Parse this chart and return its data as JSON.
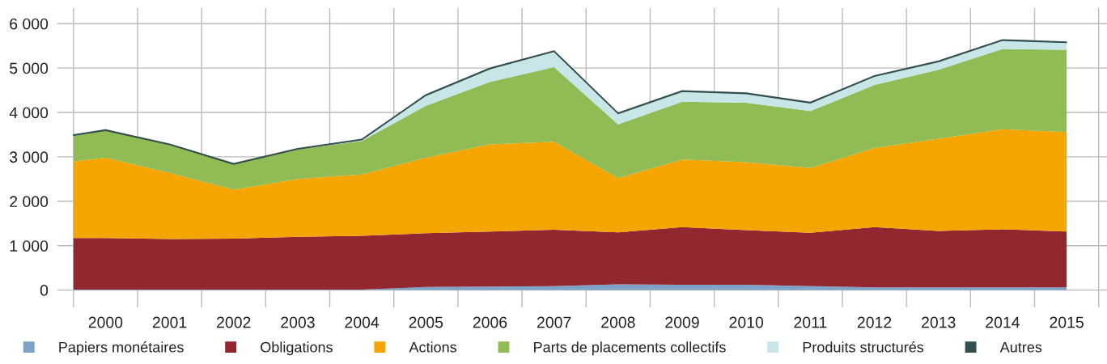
{
  "chart_data": {
    "type": "area",
    "stacked": true,
    "x": [
      1999.5,
      2000,
      2001,
      2002,
      2003,
      2004,
      2005,
      2006,
      2007,
      2008,
      2009,
      2010,
      2011,
      2012,
      2013,
      2014,
      2015
    ],
    "series": [
      {
        "name": "Papiers monétaires",
        "color": "#7da3c8",
        "values": [
          10,
          10,
          10,
          10,
          10,
          10,
          70,
          80,
          90,
          130,
          120,
          120,
          90,
          60,
          60,
          60,
          60
        ]
      },
      {
        "name": "Obligations",
        "color": "#922730",
        "values": [
          1160,
          1160,
          1140,
          1150,
          1190,
          1210,
          1210,
          1240,
          1270,
          1170,
          1300,
          1230,
          1200,
          1360,
          1270,
          1310,
          1260
        ]
      },
      {
        "name": "Actions",
        "color": "#f5a500",
        "values": [
          1730,
          1810,
          1490,
          1100,
          1300,
          1380,
          1700,
          1960,
          1980,
          1220,
          1520,
          1530,
          1460,
          1780,
          2080,
          2250,
          2240
        ]
      },
      {
        "name": "Parts de placements collectifs",
        "color": "#91bb55",
        "values": [
          580,
          610,
          630,
          570,
          670,
          760,
          1170,
          1410,
          1680,
          1210,
          1300,
          1340,
          1280,
          1420,
          1550,
          1810,
          1850
        ]
      },
      {
        "name": "Produits structurés",
        "color": "#c8e6e8",
        "values": [
          0,
          0,
          0,
          0,
          0,
          20,
          230,
          290,
          350,
          240,
          230,
          200,
          180,
          190,
          180,
          190,
          160
        ]
      },
      {
        "name": "Autres",
        "color": "#34504e",
        "values": [
          20,
          20,
          20,
          20,
          20,
          20,
          20,
          20,
          20,
          20,
          20,
          20,
          20,
          20,
          20,
          20,
          20
        ]
      }
    ],
    "xlim": [
      1999.25,
      2015.63
    ],
    "xticks": [
      {
        "value": 1999.5,
        "label": null
      },
      {
        "value": 2000,
        "label": "2000"
      },
      {
        "value": 2000.5,
        "label": null
      },
      {
        "value": 2001,
        "label": "2001"
      },
      {
        "value": 2001.5,
        "label": null
      },
      {
        "value": 2002,
        "label": "2002"
      },
      {
        "value": 2002.5,
        "label": null
      },
      {
        "value": 2003,
        "label": "2003"
      },
      {
        "value": 2003.5,
        "label": null
      },
      {
        "value": 2004,
        "label": "2004"
      },
      {
        "value": 2004.5,
        "label": null
      },
      {
        "value": 2005,
        "label": "2005"
      },
      {
        "value": 2005.5,
        "label": null
      },
      {
        "value": 2006,
        "label": "2006"
      },
      {
        "value": 2006.5,
        "label": null
      },
      {
        "value": 2007,
        "label": "2007"
      },
      {
        "value": 2007.5,
        "label": null
      },
      {
        "value": 2008,
        "label": "2008"
      },
      {
        "value": 2008.5,
        "label": null
      },
      {
        "value": 2009,
        "label": "2009"
      },
      {
        "value": 2009.5,
        "label": null
      },
      {
        "value": 2010,
        "label": "2010"
      },
      {
        "value": 2010.5,
        "label": null
      },
      {
        "value": 2011,
        "label": "2011"
      },
      {
        "value": 2011.5,
        "label": null
      },
      {
        "value": 2012,
        "label": "2012"
      },
      {
        "value": 2012.5,
        "label": null
      },
      {
        "value": 2013,
        "label": "2013"
      },
      {
        "value": 2013.5,
        "label": null
      },
      {
        "value": 2014,
        "label": "2014"
      },
      {
        "value": 2014.5,
        "label": null
      },
      {
        "value": 2015,
        "label": "2015"
      },
      {
        "value": 2015.5,
        "label": null
      }
    ],
    "ylim": [
      -390,
      6350
    ],
    "yticks": [
      {
        "value": 0,
        "label": "0"
      },
      {
        "value": 1000,
        "label": "1 000"
      },
      {
        "value": 2000,
        "label": "2 000"
      },
      {
        "value": 3000,
        "label": "3 000"
      },
      {
        "value": 4000,
        "label": "4 000"
      },
      {
        "value": 5000,
        "label": "5 000"
      },
      {
        "value": 6000,
        "label": "6 000"
      }
    ],
    "grid": true,
    "legend": "bottom"
  }
}
